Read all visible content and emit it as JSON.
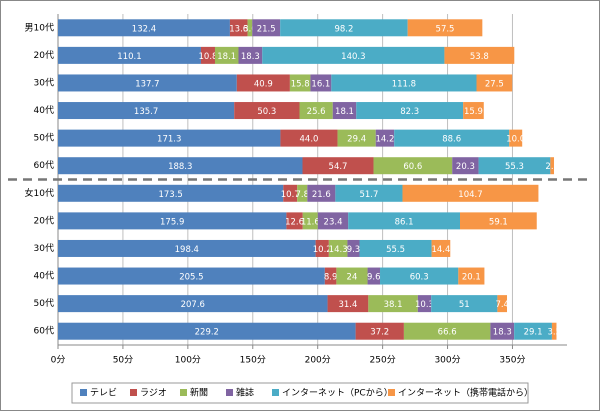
{
  "chart_data": {
    "type": "stacked-bar-horizontal",
    "categories": [
      "男10代",
      "20代",
      "30代",
      "40代",
      "50代",
      "60代",
      "女10代",
      "20代",
      "30代",
      "40代",
      "50代",
      "60代"
    ],
    "series": [
      {
        "name": "テレビ",
        "color": "#4f81bd",
        "values": [
          132.4,
          110.1,
          137.7,
          135.7,
          171.3,
          188.3,
          173.5,
          175.9,
          198.4,
          205.5,
          207.6,
          229.2
        ]
      },
      {
        "name": "ラジオ",
        "color": "#c0504d",
        "values": [
          13.6,
          10.8,
          40.9,
          50.3,
          44.0,
          54.7,
          10.7,
          12.6,
          10.2,
          8.9,
          31.4,
          37.2
        ],
        "value_labels": [
          "13.6",
          "10.8",
          "40.9",
          "50.3",
          "44.0",
          "54.7",
          "10.7",
          "12.6",
          "10.2",
          "8.9",
          "31.4",
          "37.2"
        ]
      },
      {
        "name": "新聞",
        "color": "#9bbb59",
        "values": [
          3.6,
          18.1,
          15.8,
          25.6,
          29.4,
          60.6,
          7.8,
          11.6,
          14.3,
          24.0,
          38.1,
          66.6
        ]
      },
      {
        "name": "雑誌",
        "color": "#8064a2",
        "values": [
          21.5,
          18.3,
          16.1,
          18.1,
          14.2,
          20.3,
          21.6,
          23.4,
          9.3,
          9.6,
          10.3,
          18.3
        ]
      },
      {
        "name": "インターネット（PCから）",
        "color": "#4bacc6",
        "values": [
          98.2,
          140.3,
          111.8,
          82.3,
          88.6,
          55.3,
          51.7,
          86.1,
          55.5,
          60.3,
          51.0,
          29.1
        ]
      },
      {
        "name": "インターネット（携帯電話から）",
        "color": "#f79646",
        "values": [
          57.5,
          53.8,
          27.5,
          15.9,
          10.0,
          2.8,
          104.7,
          59.1,
          14.4,
          20.1,
          7.4,
          3.5
        ],
        "value_labels": [
          "57.5",
          "53.8",
          "27.5",
          "15.9",
          "10.0",
          "2.8",
          "104.7",
          "59.1",
          "14.4",
          "20.1",
          "7.4",
          "3.5"
        ]
      }
    ],
    "xlim": [
      0,
      392
    ],
    "xticks": [
      {
        "value": 0,
        "label": "0分"
      },
      {
        "value": 50,
        "label": "50分"
      },
      {
        "value": 100,
        "label": "100分"
      },
      {
        "value": 150,
        "label": "150分"
      },
      {
        "value": 200,
        "label": "200分"
      },
      {
        "value": 250,
        "label": "250分"
      },
      {
        "value": 300,
        "label": "300分"
      },
      {
        "value": 350,
        "label": "350分"
      }
    ],
    "grid": true,
    "legend": "bottom"
  }
}
